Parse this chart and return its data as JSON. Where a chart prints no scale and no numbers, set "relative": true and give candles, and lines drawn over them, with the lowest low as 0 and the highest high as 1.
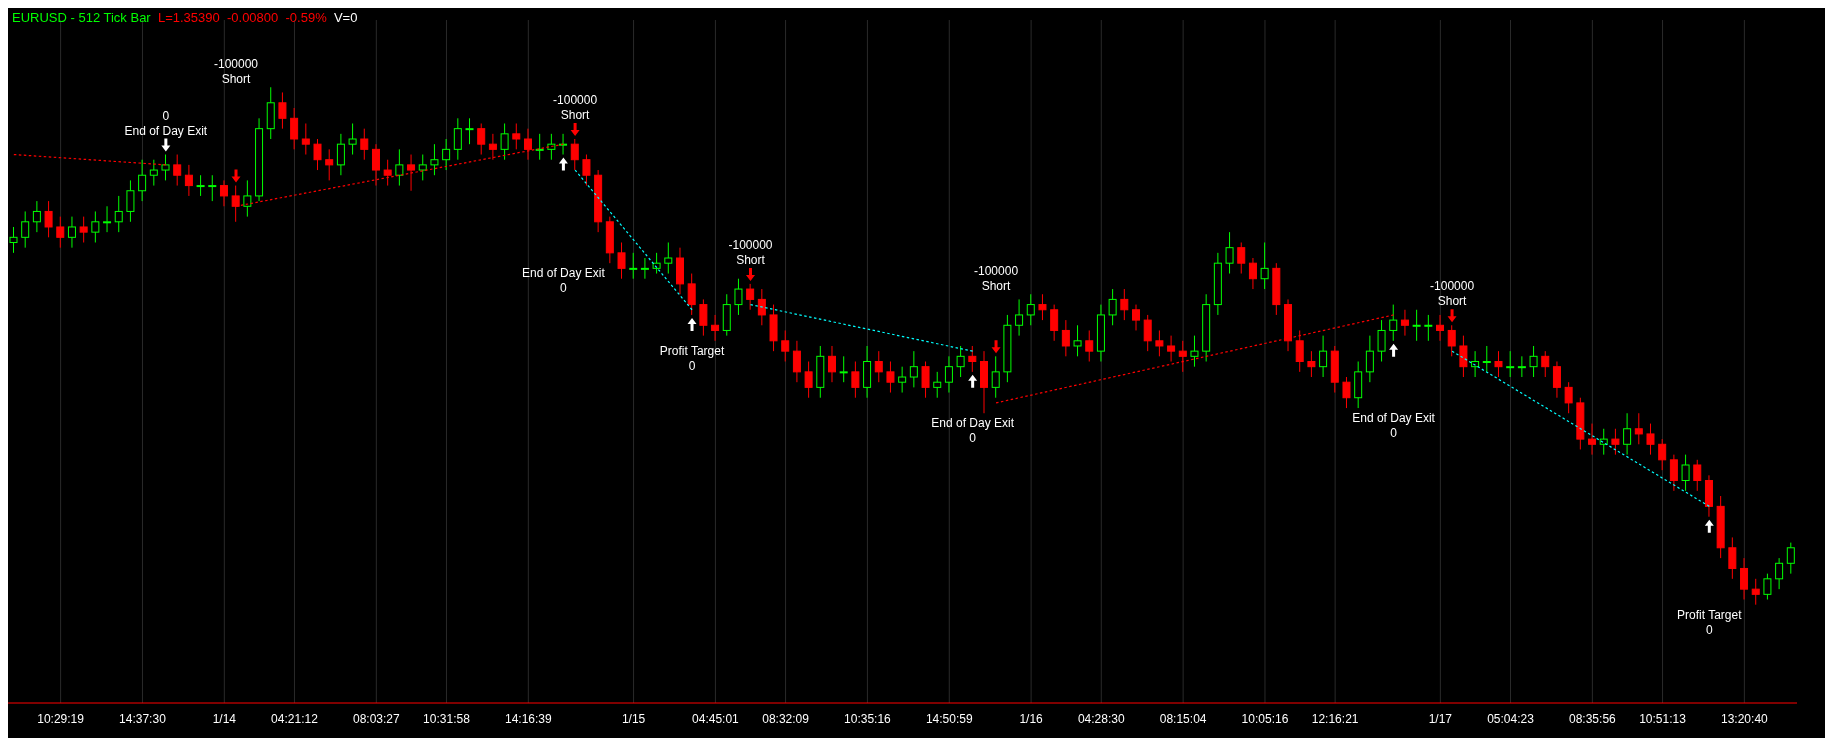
{
  "chart_data": {
    "type": "candlestick",
    "title": "EURUSD - 512 Tick Bar",
    "subtitle": "L=1.35390  -0.00800  -0.59%",
    "relative": true,
    "grid": "x",
    "annotations": [
      "0\nEnd of Day Exit",
      "-100000\nShort",
      "End of Day Exit\n0",
      "-100000\nShort",
      "Profit Target\n0",
      "-100000\nShort",
      "End of Day Exit\n0",
      "-100000\nShort",
      "End of Day Exit\n0",
      "-100000\nShort",
      "Profit Target\n0",
      "V=0"
    ],
    "categories": [
      null,
      null,
      null,
      null,
      "10:29:19",
      null,
      null,
      null,
      null,
      null,
      null,
      "14:37:30",
      null,
      null,
      null,
      null,
      null,
      null,
      "1/14",
      null,
      null,
      null,
      null,
      null,
      "04:21:12",
      null,
      null,
      null,
      null,
      null,
      null,
      "08:03:27",
      null,
      null,
      null,
      null,
      null,
      "10:31:58",
      null,
      null,
      null,
      null,
      null,
      null,
      "14:16:39",
      null,
      null,
      null,
      null,
      null,
      null,
      null,
      null,
      "1/15",
      null,
      null,
      null,
      null,
      null,
      null,
      "04:45:01",
      null,
      null,
      null,
      null,
      null,
      "08:32:09",
      null,
      null,
      null,
      null,
      null,
      null,
      "10:35:16",
      null,
      null,
      null,
      null,
      null,
      null,
      "14:50:59",
      null,
      null,
      null,
      null,
      null,
      null,
      "1/16",
      null,
      null,
      null,
      null,
      null,
      "04:28:30",
      null,
      null,
      null,
      null,
      null,
      null,
      "08:15:04",
      null,
      null,
      null,
      null,
      null,
      null,
      "10:05:16",
      null,
      null,
      null,
      null,
      null,
      "12:16:21",
      null,
      null,
      null,
      null,
      null,
      null,
      null,
      null,
      "1/17",
      null,
      null,
      null,
      null,
      null,
      "05:04:23",
      null,
      null,
      null,
      null,
      null,
      null,
      "08:35:56",
      null,
      null,
      null,
      null,
      null,
      "10:51:13",
      null,
      null,
      null,
      null,
      null,
      null,
      "13:20:40",
      null,
      null,
      null,
      null
    ],
    "ohlc": [
      [
        0.7,
        0.73,
        0.68,
        0.71
      ],
      [
        0.71,
        0.76,
        0.69,
        0.74
      ],
      [
        0.74,
        0.78,
        0.72,
        0.76
      ],
      [
        0.76,
        0.78,
        0.71,
        0.73
      ],
      [
        0.73,
        0.75,
        0.69,
        0.71
      ],
      [
        0.71,
        0.75,
        0.69,
        0.73
      ],
      [
        0.73,
        0.75,
        0.7,
        0.72
      ],
      [
        0.72,
        0.76,
        0.7,
        0.74
      ],
      [
        0.74,
        0.77,
        0.72,
        0.74
      ],
      [
        0.74,
        0.79,
        0.72,
        0.76
      ],
      [
        0.76,
        0.82,
        0.74,
        0.8
      ],
      [
        0.8,
        0.86,
        0.78,
        0.83
      ],
      [
        0.83,
        0.86,
        0.81,
        0.84
      ],
      [
        0.84,
        0.87,
        0.82,
        0.85
      ],
      [
        0.85,
        0.87,
        0.81,
        0.83
      ],
      [
        0.83,
        0.85,
        0.79,
        0.81
      ],
      [
        0.81,
        0.83,
        0.79,
        0.81
      ],
      [
        0.81,
        0.83,
        0.78,
        0.81
      ],
      [
        0.81,
        0.82,
        0.77,
        0.79
      ],
      [
        0.79,
        0.81,
        0.74,
        0.77
      ],
      [
        0.77,
        0.82,
        0.75,
        0.79
      ],
      [
        0.79,
        0.94,
        0.78,
        0.92
      ],
      [
        0.92,
        1,
        0.9,
        0.97
      ],
      [
        0.97,
        0.99,
        0.92,
        0.94
      ],
      [
        0.94,
        0.96,
        0.88,
        0.9
      ],
      [
        0.9,
        0.93,
        0.87,
        0.89
      ],
      [
        0.89,
        0.9,
        0.84,
        0.86
      ],
      [
        0.86,
        0.88,
        0.82,
        0.85
      ],
      [
        0.85,
        0.91,
        0.83,
        0.89
      ],
      [
        0.89,
        0.93,
        0.87,
        0.9
      ],
      [
        0.9,
        0.92,
        0.86,
        0.88
      ],
      [
        0.88,
        0.89,
        0.81,
        0.84
      ],
      [
        0.84,
        0.86,
        0.81,
        0.83
      ],
      [
        0.83,
        0.88,
        0.81,
        0.85
      ],
      [
        0.85,
        0.87,
        0.8,
        0.84
      ],
      [
        0.84,
        0.87,
        0.82,
        0.85
      ],
      [
        0.85,
        0.89,
        0.83,
        0.86
      ],
      [
        0.86,
        0.9,
        0.84,
        0.88
      ],
      [
        0.88,
        0.94,
        0.86,
        0.92
      ],
      [
        0.92,
        0.94,
        0.89,
        0.92
      ],
      [
        0.92,
        0.93,
        0.87,
        0.89
      ],
      [
        0.89,
        0.91,
        0.86,
        0.88
      ],
      [
        0.88,
        0.93,
        0.86,
        0.91
      ],
      [
        0.91,
        0.93,
        0.88,
        0.9
      ],
      [
        0.9,
        0.92,
        0.86,
        0.88
      ],
      [
        0.88,
        0.91,
        0.86,
        0.88
      ],
      [
        0.88,
        0.91,
        0.86,
        0.89
      ],
      [
        0.89,
        0.91,
        0.87,
        0.89
      ],
      [
        0.89,
        0.9,
        0.84,
        0.86
      ],
      [
        0.86,
        0.87,
        0.81,
        0.83
      ],
      [
        0.83,
        0.84,
        0.72,
        0.74
      ],
      [
        0.74,
        0.75,
        0.66,
        0.68
      ],
      [
        0.68,
        0.7,
        0.63,
        0.65
      ],
      [
        0.65,
        0.68,
        0.63,
        0.65
      ],
      [
        0.65,
        0.67,
        0.63,
        0.65
      ],
      [
        0.65,
        0.68,
        0.64,
        0.66
      ],
      [
        0.66,
        0.7,
        0.64,
        0.67
      ],
      [
        0.67,
        0.69,
        0.6,
        0.62
      ],
      [
        0.62,
        0.64,
        0.56,
        0.58
      ],
      [
        0.58,
        0.59,
        0.52,
        0.54
      ],
      [
        0.54,
        0.56,
        0.51,
        0.53
      ],
      [
        0.53,
        0.6,
        0.52,
        0.58
      ],
      [
        0.58,
        0.63,
        0.56,
        0.61
      ],
      [
        0.61,
        0.62,
        0.57,
        0.59
      ],
      [
        0.59,
        0.61,
        0.54,
        0.56
      ],
      [
        0.56,
        0.58,
        0.49,
        0.51
      ],
      [
        0.51,
        0.53,
        0.47,
        0.49
      ],
      [
        0.49,
        0.51,
        0.43,
        0.45
      ],
      [
        0.45,
        0.47,
        0.4,
        0.42
      ],
      [
        0.42,
        0.5,
        0.4,
        0.48
      ],
      [
        0.48,
        0.5,
        0.43,
        0.45
      ],
      [
        0.45,
        0.48,
        0.43,
        0.45
      ],
      [
        0.45,
        0.47,
        0.4,
        0.42
      ],
      [
        0.42,
        0.5,
        0.4,
        0.47
      ],
      [
        0.47,
        0.49,
        0.43,
        0.45
      ],
      [
        0.45,
        0.47,
        0.41,
        0.43
      ],
      [
        0.43,
        0.46,
        0.41,
        0.44
      ],
      [
        0.44,
        0.49,
        0.42,
        0.46
      ],
      [
        0.46,
        0.47,
        0.4,
        0.42
      ],
      [
        0.42,
        0.45,
        0.4,
        0.43
      ],
      [
        0.43,
        0.48,
        0.41,
        0.46
      ],
      [
        0.46,
        0.5,
        0.44,
        0.48
      ],
      [
        0.48,
        0.5,
        0.45,
        0.47
      ],
      [
        0.47,
        0.49,
        0.37,
        0.42
      ],
      [
        0.42,
        0.48,
        0.4,
        0.45
      ],
      [
        0.45,
        0.56,
        0.43,
        0.54
      ],
      [
        0.54,
        0.59,
        0.52,
        0.56
      ],
      [
        0.56,
        0.6,
        0.54,
        0.58
      ],
      [
        0.58,
        0.6,
        0.55,
        0.57
      ],
      [
        0.57,
        0.58,
        0.51,
        0.53
      ],
      [
        0.53,
        0.55,
        0.48,
        0.5
      ],
      [
        0.5,
        0.54,
        0.48,
        0.51
      ],
      [
        0.51,
        0.53,
        0.47,
        0.49
      ],
      [
        0.49,
        0.58,
        0.47,
        0.56
      ],
      [
        0.56,
        0.61,
        0.54,
        0.59
      ],
      [
        0.59,
        0.61,
        0.55,
        0.57
      ],
      [
        0.57,
        0.58,
        0.53,
        0.55
      ],
      [
        0.55,
        0.56,
        0.49,
        0.51
      ],
      [
        0.51,
        0.53,
        0.48,
        0.5
      ],
      [
        0.5,
        0.52,
        0.47,
        0.49
      ],
      [
        0.49,
        0.51,
        0.45,
        0.48
      ],
      [
        0.48,
        0.52,
        0.46,
        0.49
      ],
      [
        0.49,
        0.6,
        0.47,
        0.58
      ],
      [
        0.58,
        0.68,
        0.56,
        0.66
      ],
      [
        0.66,
        0.72,
        0.64,
        0.69
      ],
      [
        0.69,
        0.7,
        0.64,
        0.66
      ],
      [
        0.66,
        0.67,
        0.61,
        0.63
      ],
      [
        0.63,
        0.7,
        0.61,
        0.65
      ],
      [
        0.65,
        0.66,
        0.56,
        0.58
      ],
      [
        0.58,
        0.59,
        0.49,
        0.51
      ],
      [
        0.51,
        0.53,
        0.45,
        0.47
      ],
      [
        0.47,
        0.49,
        0.44,
        0.46
      ],
      [
        0.46,
        0.52,
        0.44,
        0.49
      ],
      [
        0.49,
        0.5,
        0.41,
        0.43
      ],
      [
        0.43,
        0.44,
        0.38,
        0.4
      ],
      [
        0.4,
        0.47,
        0.38,
        0.45
      ],
      [
        0.45,
        0.52,
        0.43,
        0.49
      ],
      [
        0.49,
        0.55,
        0.47,
        0.53
      ],
      [
        0.53,
        0.58,
        0.51,
        0.55
      ],
      [
        0.55,
        0.57,
        0.52,
        0.54
      ],
      [
        0.54,
        0.57,
        0.51,
        0.54
      ],
      [
        0.54,
        0.56,
        0.51,
        0.54
      ],
      [
        0.54,
        0.56,
        0.51,
        0.53
      ],
      [
        0.53,
        0.54,
        0.48,
        0.5
      ],
      [
        0.5,
        0.52,
        0.44,
        0.46
      ],
      [
        0.46,
        0.49,
        0.44,
        0.47
      ],
      [
        0.47,
        0.5,
        0.45,
        0.47
      ],
      [
        0.47,
        0.49,
        0.44,
        0.46
      ],
      [
        0.46,
        0.49,
        0.44,
        0.46
      ],
      [
        0.46,
        0.48,
        0.44,
        0.46
      ],
      [
        0.46,
        0.5,
        0.44,
        0.48
      ],
      [
        0.48,
        0.49,
        0.44,
        0.46
      ],
      [
        0.46,
        0.47,
        0.4,
        0.42
      ],
      [
        0.42,
        0.43,
        0.37,
        0.39
      ],
      [
        0.39,
        0.4,
        0.3,
        0.32
      ],
      [
        0.32,
        0.35,
        0.29,
        0.31
      ],
      [
        0.31,
        0.34,
        0.29,
        0.32
      ],
      [
        0.32,
        0.34,
        0.29,
        0.31
      ],
      [
        0.31,
        0.37,
        0.29,
        0.34
      ],
      [
        0.34,
        0.37,
        0.31,
        0.33
      ],
      [
        0.33,
        0.35,
        0.29,
        0.31
      ],
      [
        0.31,
        0.32,
        0.26,
        0.28
      ],
      [
        0.28,
        0.29,
        0.22,
        0.24
      ],
      [
        0.24,
        0.29,
        0.22,
        0.27
      ],
      [
        0.27,
        0.28,
        0.22,
        0.24
      ],
      [
        0.24,
        0.25,
        0.17,
        0.19
      ],
      [
        0.19,
        0.21,
        0.09,
        0.11
      ],
      [
        0.11,
        0.13,
        0.05,
        0.07
      ],
      [
        0.07,
        0.09,
        0.01,
        0.03
      ],
      [
        0.03,
        0.05,
        0,
        0.02
      ],
      [
        0.02,
        0.06,
        0.01,
        0.05
      ],
      [
        0.05,
        0.09,
        0.03,
        0.08
      ],
      [
        0.08,
        0.12,
        0.06,
        0.11
      ]
    ],
    "series": [
      {
        "type": "line",
        "color": "#ff0000",
        "line_style": "dotted",
        "values": [
          0.87,
          null,
          null,
          null,
          null,
          null,
          null,
          null,
          null,
          null,
          null,
          null,
          null,
          0.85,
          null,
          null,
          null,
          null,
          null,
          null,
          null,
          null,
          null,
          null,
          null,
          null,
          null,
          null,
          null,
          null,
          null,
          null,
          null,
          null,
          null,
          null,
          null,
          null,
          null,
          null,
          null,
          null,
          null,
          null,
          null,
          null,
          null,
          null,
          null,
          null,
          null,
          null,
          null,
          null,
          null,
          null,
          null,
          null,
          null,
          null,
          null,
          null,
          null,
          null,
          null,
          null,
          null,
          null,
          null,
          null,
          null,
          null,
          null,
          null,
          null,
          null,
          null,
          null,
          null,
          null,
          null,
          null,
          null,
          null,
          null,
          null,
          null,
          null,
          null,
          null,
          null,
          null,
          null,
          null,
          null,
          null,
          null,
          null,
          null,
          null,
          null,
          null,
          null,
          null,
          null,
          null,
          null,
          null,
          null,
          null,
          null,
          null,
          null,
          null,
          null,
          null,
          null,
          null,
          null,
          null,
          null,
          null,
          null,
          null,
          null,
          null,
          null,
          null,
          null,
          null,
          null,
          null,
          null,
          null,
          null,
          null,
          null,
          null,
          null,
          null,
          null,
          null,
          null,
          null,
          null,
          null,
          null,
          null,
          null,
          null,
          null,
          null,
          null
        ]
      },
      {
        "type": "line",
        "color": "#ff0000",
        "line_style": "dotted",
        "values": [
          null,
          null,
          null,
          null,
          null,
          null,
          null,
          null,
          null,
          null,
          null,
          null,
          null,
          null,
          null,
          null,
          null,
          null,
          null,
          0.77,
          null,
          null,
          null,
          null,
          null,
          null,
          null,
          null,
          null,
          null,
          null,
          null,
          null,
          null,
          null,
          null,
          null,
          null,
          null,
          null,
          null,
          null,
          null,
          null,
          null,
          null,
          null,
          0.89,
          null,
          null,
          null,
          null,
          null,
          null,
          null,
          null,
          null,
          null,
          null,
          null,
          null,
          null,
          null,
          null,
          null,
          null,
          null,
          null,
          null,
          null,
          null,
          null,
          null,
          null,
          null,
          null,
          null,
          null,
          null,
          null,
          null,
          null,
          null,
          null,
          null,
          null,
          null,
          null,
          null,
          null,
          null,
          null,
          null,
          null,
          null,
          null,
          null,
          null,
          null,
          null,
          null,
          null,
          null,
          null,
          null,
          null,
          null,
          null,
          null,
          null,
          null,
          null,
          null,
          null,
          null,
          null,
          null,
          null,
          null,
          null,
          null,
          null,
          null,
          null,
          null,
          null,
          null,
          null,
          null,
          null,
          null,
          null,
          null,
          null,
          null,
          null,
          null,
          null,
          null,
          null,
          null,
          null,
          null,
          null,
          null,
          null,
          null,
          null,
          null,
          null,
          null,
          null,
          null
        ]
      },
      {
        "type": "line",
        "color": "#00ffff",
        "line_style": "dotted",
        "values": [
          null,
          null,
          null,
          null,
          null,
          null,
          null,
          null,
          null,
          null,
          null,
          null,
          null,
          null,
          null,
          null,
          null,
          null,
          null,
          null,
          null,
          null,
          null,
          null,
          null,
          null,
          null,
          null,
          null,
          null,
          null,
          null,
          null,
          null,
          null,
          null,
          null,
          null,
          null,
          null,
          null,
          null,
          null,
          null,
          null,
          null,
          null,
          null,
          0.84,
          null,
          null,
          null,
          null,
          null,
          null,
          null,
          null,
          null,
          0.57,
          null,
          null,
          null,
          null,
          null,
          null,
          null,
          null,
          null,
          null,
          null,
          null,
          null,
          null,
          null,
          null,
          null,
          null,
          null,
          null,
          null,
          null,
          null,
          null,
          null,
          null,
          null,
          null,
          null,
          null,
          null,
          null,
          null,
          null,
          null,
          null,
          null,
          null,
          null,
          null,
          null,
          null,
          null,
          null,
          null,
          null,
          null,
          null,
          null,
          null,
          null,
          null,
          null,
          null,
          null,
          null,
          null,
          null,
          null,
          null,
          null,
          null,
          null,
          null,
          null,
          null,
          null,
          null,
          null,
          null,
          null,
          null,
          null,
          null,
          null,
          null,
          null,
          null,
          null,
          null,
          null,
          null,
          null,
          null,
          null,
          null,
          null,
          null,
          null,
          null,
          null,
          null,
          null,
          null
        ]
      },
      {
        "type": "line",
        "color": "#00ffff",
        "line_style": "dotted",
        "values": [
          null,
          null,
          null,
          null,
          null,
          null,
          null,
          null,
          null,
          null,
          null,
          null,
          null,
          null,
          null,
          null,
          null,
          null,
          null,
          null,
          null,
          null,
          null,
          null,
          null,
          null,
          null,
          null,
          null,
          null,
          null,
          null,
          null,
          null,
          null,
          null,
          null,
          null,
          null,
          null,
          null,
          null,
          null,
          null,
          null,
          null,
          null,
          null,
          null,
          null,
          null,
          null,
          null,
          null,
          null,
          null,
          null,
          null,
          null,
          null,
          null,
          null,
          null,
          0.58,
          null,
          null,
          null,
          null,
          null,
          null,
          null,
          null,
          null,
          null,
          null,
          null,
          null,
          null,
          null,
          null,
          null,
          null,
          0.49,
          null,
          null,
          null,
          null,
          null,
          null,
          null,
          null,
          null,
          null,
          null,
          null,
          null,
          null,
          null,
          null,
          null,
          null,
          null,
          null,
          null,
          null,
          null,
          null,
          null,
          null,
          null,
          null,
          null,
          null,
          null,
          null,
          null,
          null,
          null,
          null,
          null,
          null,
          null,
          null,
          null,
          null,
          null,
          null,
          null,
          null,
          null,
          null,
          null,
          null,
          null,
          null,
          null,
          null,
          null,
          null,
          null,
          null,
          null,
          null,
          null,
          null,
          null,
          null,
          null,
          null,
          null,
          null,
          null,
          null
        ]
      },
      {
        "type": "line",
        "color": "#ff0000",
        "line_style": "dotted",
        "values": [
          null,
          null,
          null,
          null,
          null,
          null,
          null,
          null,
          null,
          null,
          null,
          null,
          null,
          null,
          null,
          null,
          null,
          null,
          null,
          null,
          null,
          null,
          null,
          null,
          null,
          null,
          null,
          null,
          null,
          null,
          null,
          null,
          null,
          null,
          null,
          null,
          null,
          null,
          null,
          null,
          null,
          null,
          null,
          null,
          null,
          null,
          null,
          null,
          null,
          null,
          null,
          null,
          null,
          null,
          null,
          null,
          null,
          null,
          null,
          null,
          null,
          null,
          null,
          null,
          null,
          null,
          null,
          null,
          null,
          null,
          null,
          null,
          null,
          null,
          null,
          null,
          null,
          null,
          null,
          null,
          null,
          null,
          null,
          null,
          0.39,
          null,
          null,
          null,
          null,
          null,
          null,
          null,
          null,
          null,
          null,
          null,
          null,
          null,
          null,
          null,
          null,
          null,
          null,
          null,
          null,
          null,
          null,
          null,
          null,
          null,
          null,
          null,
          null,
          null,
          null,
          null,
          null,
          null,
          0.56,
          null,
          null,
          null,
          null,
          null,
          null,
          null,
          null,
          null,
          null,
          null,
          null,
          null,
          null,
          null,
          null,
          null,
          null,
          null,
          null,
          null,
          null,
          null,
          null,
          null,
          null,
          null,
          null,
          null,
          null,
          null,
          null,
          null,
          null
        ]
      },
      {
        "type": "line",
        "color": "#00ffff",
        "line_style": "dotted",
        "values": [
          null,
          null,
          null,
          null,
          null,
          null,
          null,
          null,
          null,
          null,
          null,
          null,
          null,
          null,
          null,
          null,
          null,
          null,
          null,
          null,
          null,
          null,
          null,
          null,
          null,
          null,
          null,
          null,
          null,
          null,
          null,
          null,
          null,
          null,
          null,
          null,
          null,
          null,
          null,
          null,
          null,
          null,
          null,
          null,
          null,
          null,
          null,
          null,
          null,
          null,
          null,
          null,
          null,
          null,
          null,
          null,
          null,
          null,
          null,
          null,
          null,
          null,
          null,
          null,
          null,
          null,
          null,
          null,
          null,
          null,
          null,
          null,
          null,
          null,
          null,
          null,
          null,
          null,
          null,
          null,
          null,
          null,
          null,
          null,
          null,
          null,
          null,
          null,
          null,
          null,
          null,
          null,
          null,
          null,
          null,
          null,
          null,
          null,
          null,
          null,
          null,
          null,
          null,
          null,
          null,
          null,
          null,
          null,
          null,
          null,
          null,
          null,
          null,
          null,
          null,
          null,
          null,
          null,
          null,
          null,
          null,
          null,
          null,
          0.49,
          null,
          null,
          null,
          null,
          null,
          null,
          null,
          null,
          null,
          null,
          null,
          null,
          null,
          null,
          null,
          null,
          null,
          null,
          null,
          null,
          null,
          0.19,
          null,
          null,
          null,
          null,
          null,
          null,
          null
        ]
      }
    ]
  }
}
